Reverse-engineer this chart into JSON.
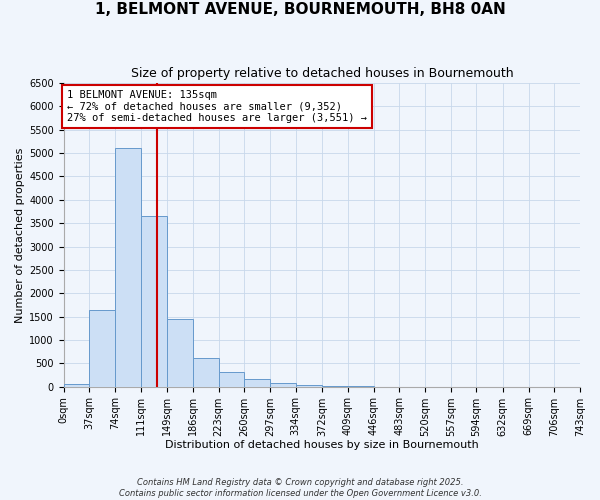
{
  "title": "1, BELMONT AVENUE, BOURNEMOUTH, BH8 0AN",
  "subtitle": "Size of property relative to detached houses in Bournemouth",
  "xlabel": "Distribution of detached houses by size in Bournemouth",
  "ylabel": "Number of detached properties",
  "bin_edges": [
    0,
    37,
    74,
    111,
    149,
    186,
    223,
    260,
    297,
    334,
    372,
    409,
    446,
    483,
    520,
    557,
    594,
    632,
    669,
    706,
    743
  ],
  "bin_counts": [
    60,
    1650,
    5100,
    3650,
    1440,
    620,
    310,
    155,
    70,
    30,
    10,
    5,
    2,
    1,
    0,
    0,
    0,
    0,
    0,
    0
  ],
  "bar_color": "#ccdff5",
  "bar_edge_color": "#6699cc",
  "property_value": 135,
  "vline_color": "#cc0000",
  "annotation_title": "1 BELMONT AVENUE: 135sqm",
  "annotation_line1": "← 72% of detached houses are smaller (9,352)",
  "annotation_line2": "27% of semi-detached houses are larger (3,551) →",
  "annotation_box_facecolor": "#ffffff",
  "annotation_box_edgecolor": "#cc0000",
  "ylim_max": 6500,
  "yticks": [
    0,
    500,
    1000,
    1500,
    2000,
    2500,
    3000,
    3500,
    4000,
    4500,
    5000,
    5500,
    6000,
    6500
  ],
  "grid_color": "#c8d8eb",
  "plot_bg_color": "#f0f5fc",
  "fig_bg_color": "#f0f5fc",
  "footer1": "Contains HM Land Registry data © Crown copyright and database right 2025.",
  "footer2": "Contains public sector information licensed under the Open Government Licence v3.0.",
  "title_fontsize": 11,
  "subtitle_fontsize": 9,
  "axis_label_fontsize": 8,
  "tick_fontsize": 7,
  "annotation_fontsize": 7.5,
  "footer_fontsize": 6
}
